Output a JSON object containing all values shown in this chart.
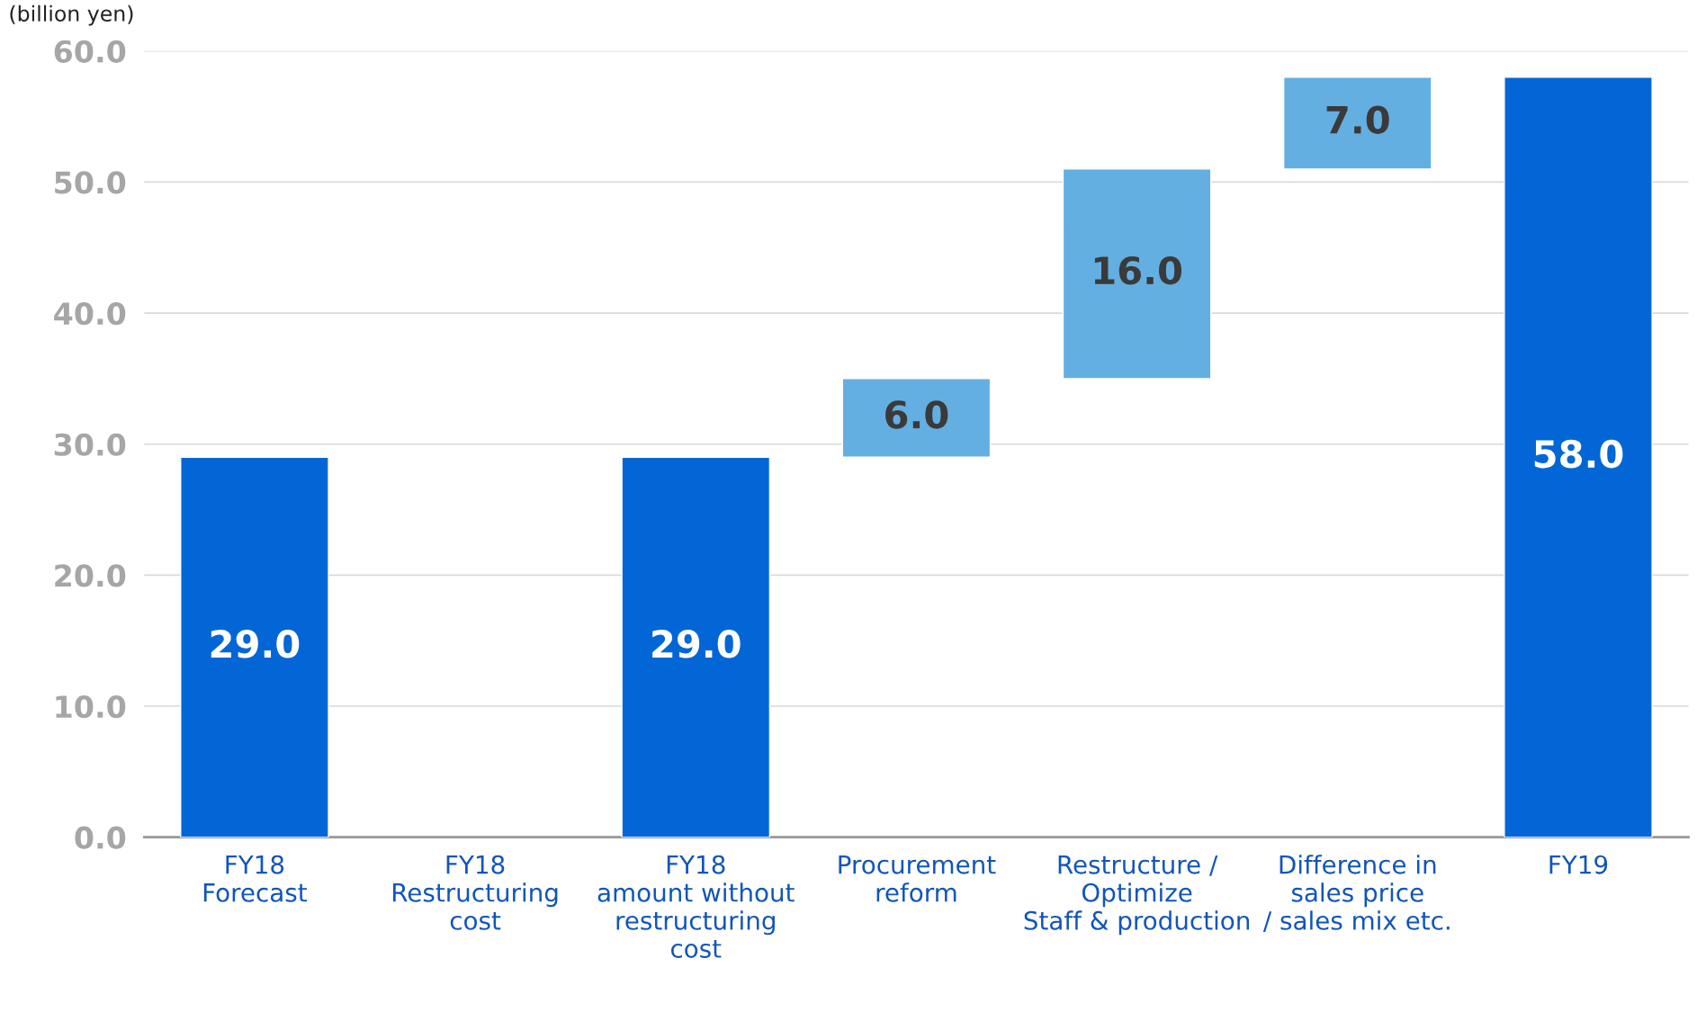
{
  "chart_data": {
    "type": "bar",
    "ylabel": "(billion yen)",
    "categories": [
      "FY18\nForecast",
      "FY18\nRestructuring\ncost",
      "FY18\namount without\nrestructuring\ncost",
      "Procurement\nreform",
      "Restructure /\nOptimize\nStaff & production",
      "Difference in\nsales price\n/ sales mix etc.",
      "FY19"
    ],
    "values": [
      29.0,
      null,
      29.0,
      6.0,
      16.0,
      7.0,
      58.0
    ],
    "base": [
      0,
      null,
      0,
      29.0,
      35.0,
      51.0,
      0
    ],
    "colors": [
      "#0366d6",
      "#0366d6",
      "#0366d6",
      "#64afe1",
      "#64afe1",
      "#64afe1",
      "#0366d6"
    ],
    "value_labels": [
      "29.0",
      null,
      "29.0",
      "6.0",
      "16.0",
      "7.0",
      "58.0"
    ],
    "ylim": [
      0,
      60
    ],
    "yticks": [
      {
        "value": 0,
        "label": "0.0"
      },
      {
        "value": 10,
        "label": "10.0"
      },
      {
        "value": 20,
        "label": "20.0"
      },
      {
        "value": 30,
        "label": "30.0"
      },
      {
        "value": 40,
        "label": "40.0"
      },
      {
        "value": 50,
        "label": "50.0"
      },
      {
        "value": 60,
        "label": "60.0"
      }
    ],
    "grid": "y",
    "legend": false
  }
}
